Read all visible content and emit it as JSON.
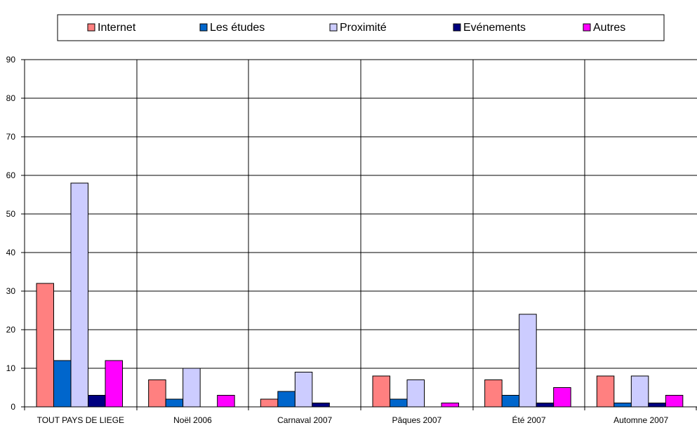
{
  "chart_data": {
    "type": "bar",
    "title": "",
    "xlabel": "",
    "ylabel": "",
    "categories": [
      "TOUT PAYS DE LIEGE",
      "Noël 2006",
      "Carnaval 2007",
      "Pâques 2007",
      "Été 2007",
      "Automne 2007"
    ],
    "series": [
      {
        "name": "Internet",
        "color": "#FF8080",
        "values": [
          32,
          7,
          2,
          8,
          7,
          8
        ]
      },
      {
        "name": "Les études",
        "color": "#0066CC",
        "values": [
          12,
          2,
          4,
          2,
          3,
          1
        ]
      },
      {
        "name": "Proximité",
        "color": "#CCCCFF",
        "values": [
          58,
          10,
          9,
          7,
          24,
          8
        ]
      },
      {
        "name": "Evénements",
        "color": "#000080",
        "values": [
          3,
          0,
          1,
          0,
          1,
          1
        ]
      },
      {
        "name": "Autres",
        "color": "#FF00FF",
        "values": [
          12,
          3,
          0,
          1,
          5,
          3
        ]
      }
    ],
    "ylim": [
      0,
      90
    ],
    "yticks": [
      0,
      10,
      20,
      30,
      40,
      50,
      60,
      70,
      80,
      90
    ],
    "grid": true,
    "legend_position": "top"
  }
}
